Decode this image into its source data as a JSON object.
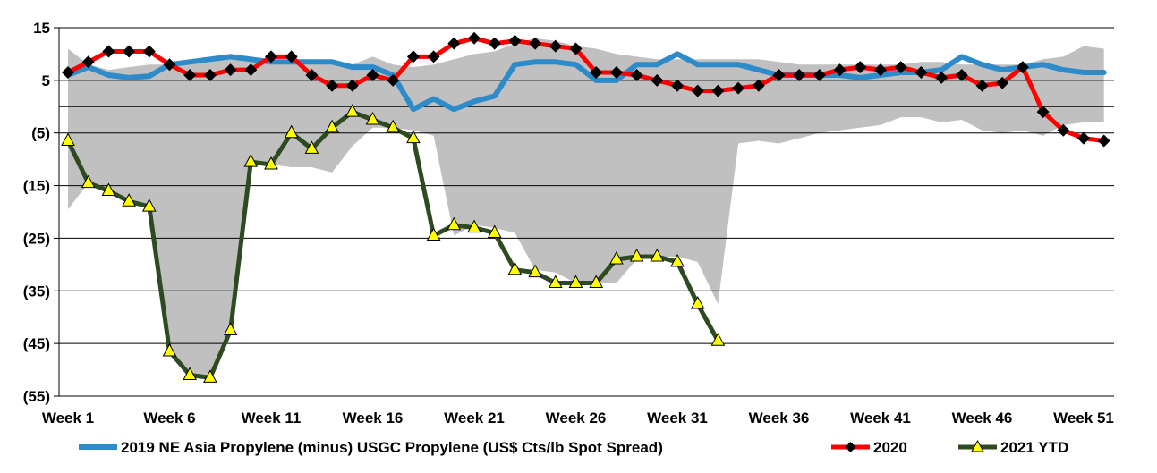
{
  "chart_data": {
    "type": "line",
    "title": "",
    "xlabel": "",
    "ylabel": "",
    "ylim": [
      -55,
      15
    ],
    "yticks": [
      15,
      5,
      -5,
      -15,
      -25,
      -35,
      -45,
      -55
    ],
    "ytick_labels": [
      "15",
      "5",
      "(5)",
      "(15)",
      "(25)",
      "(35)",
      "(45)",
      "(55)"
    ],
    "xtick_labels": [
      "Week 1",
      "Week 6",
      "Week 11",
      "Week 16",
      "Week 21",
      "Week 26",
      "Week 31",
      "Week 36",
      "Week 41",
      "Week 46",
      "Week 51"
    ],
    "xtick_weeks": [
      1,
      6,
      11,
      16,
      21,
      26,
      31,
      36,
      41,
      46,
      51
    ],
    "grid": true,
    "legend_position": "bottom",
    "range_band": {
      "upper": [
        11,
        8,
        7,
        7.5,
        8,
        8,
        9,
        9.5,
        10,
        9.5,
        9,
        8.5,
        8.5,
        8,
        8,
        9.5,
        8,
        7.5,
        8,
        9,
        10,
        10.5,
        12,
        13,
        12.5,
        11.5,
        11,
        10,
        9.5,
        9,
        9,
        9,
        9,
        9,
        9,
        8.5,
        8,
        8,
        8,
        8,
        8,
        8,
        8.5,
        8.5,
        8,
        8,
        8,
        8,
        9,
        9.5,
        11.5,
        11
      ],
      "lower": [
        -19.5,
        -14.5,
        -16,
        -18,
        -19,
        -46.5,
        -51,
        -51.5,
        -42.5,
        -10.5,
        -11,
        -11.5,
        -11.5,
        -12.5,
        -7.5,
        -4,
        -4,
        -4.5,
        -5.5,
        -24.5,
        -22.5,
        -23,
        -24,
        -31,
        -31.5,
        -33.5,
        -33.5,
        -33.5,
        -29,
        -28.5,
        -28.5,
        -29.5,
        -37.5,
        -7,
        -6.5,
        -7,
        -6,
        -5,
        -4.5,
        -4,
        -3.5,
        -2,
        -2,
        -3,
        -2.5,
        -4.5,
        -5,
        -4.5,
        -5.5,
        -3.5,
        -3,
        -3
      ]
    },
    "series": [
      {
        "name": "2019 NE Asia Propylene (minus) USGC Propylene (US$ Cts/lb Spot Spread)",
        "color": "#2E8BC9",
        "marker": "none",
        "values": [
          6,
          7.5,
          6,
          5.5,
          5.8,
          8,
          8.5,
          9,
          9.5,
          9,
          8.5,
          8.5,
          8.5,
          8.5,
          7.5,
          7.5,
          6,
          -0.5,
          1.5,
          -0.5,
          1,
          2,
          8,
          8.5,
          8.5,
          8,
          5,
          5,
          8,
          8,
          10,
          8,
          8,
          8,
          7,
          6,
          6,
          6,
          6,
          5.5,
          6,
          6.5,
          6.5,
          7,
          9.5,
          8,
          7,
          7.5,
          8,
          7,
          6.5,
          6.5
        ]
      },
      {
        "name": "2020",
        "color": "#FF0000",
        "marker": "diamond",
        "values": [
          6.5,
          8.5,
          10.5,
          10.5,
          10.5,
          8,
          6,
          6,
          7,
          7,
          9.5,
          9.5,
          6,
          4,
          4,
          6,
          5,
          9.5,
          9.5,
          12,
          13,
          12,
          12.5,
          12,
          11.5,
          11,
          6.5,
          6.5,
          6,
          5,
          4,
          3,
          3,
          3.5,
          4,
          6,
          6,
          6,
          7,
          7.5,
          7,
          7.5,
          6.5,
          5.5,
          6,
          4,
          4.5,
          7.5,
          -1,
          -4.5,
          -6,
          -6.5
        ]
      },
      {
        "name": "2021 YTD",
        "color": "#2E4A21",
        "marker": "triangle",
        "values": [
          -6.5,
          -14.5,
          -16,
          -18,
          -19,
          -46.5,
          -51,
          -51.5,
          -42.5,
          -10.5,
          -11,
          -5,
          -8,
          -4,
          -1,
          -2.5,
          -4,
          -6,
          -24.5,
          -22.5,
          -23,
          -24,
          -31,
          -31.5,
          -33.5,
          -33.5,
          -33.5,
          -29,
          -28.5,
          -28.5,
          -29.5,
          -37.5,
          -44.5
        ]
      }
    ]
  }
}
